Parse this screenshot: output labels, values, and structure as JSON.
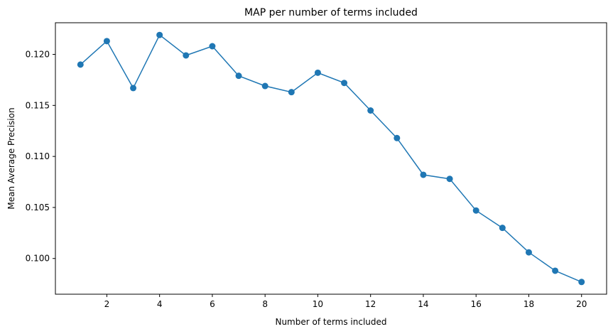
{
  "chart_data": {
    "type": "line",
    "title": "MAP per number of terms included",
    "xlabel": "Number of terms included",
    "ylabel": "Mean Average Precision",
    "x": [
      1,
      2,
      3,
      4,
      5,
      6,
      7,
      8,
      9,
      10,
      11,
      12,
      13,
      14,
      15,
      16,
      17,
      18,
      19,
      20
    ],
    "series": [
      {
        "values": [
          0.119,
          0.1213,
          0.1167,
          0.1219,
          0.1199,
          0.1208,
          0.1179,
          0.1169,
          0.1163,
          0.1182,
          0.1172,
          0.1145,
          0.1118,
          0.1082,
          0.1078,
          0.1047,
          0.103,
          0.1006,
          0.0988,
          0.0977
        ],
        "color": "#1f77b4",
        "marker": "circle"
      }
    ],
    "xticks": [
      2,
      4,
      6,
      8,
      10,
      12,
      14,
      16,
      18,
      20
    ],
    "xtick_labels": [
      "2",
      "4",
      "6",
      "8",
      "10",
      "12",
      "14",
      "16",
      "18",
      "20"
    ],
    "yticks": [
      0.1,
      0.105,
      0.11,
      0.115,
      0.12
    ],
    "ytick_labels": [
      "0.100",
      "0.105",
      "0.110",
      "0.115",
      "0.120"
    ],
    "xlim": [
      0.05,
      20.95
    ],
    "ylim": [
      0.0965,
      0.1231
    ],
    "grid": false,
    "legend": "none"
  }
}
